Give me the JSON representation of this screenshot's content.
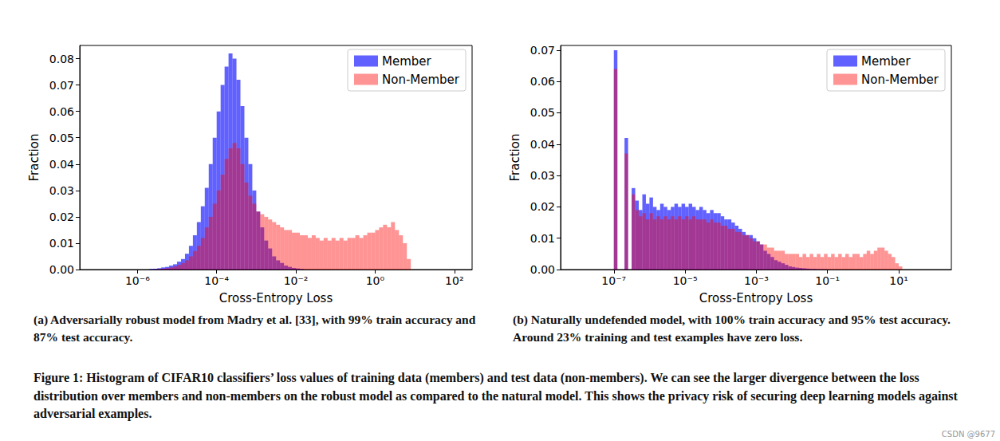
{
  "chart_data": [
    {
      "type": "histogram",
      "caption": "(a) Adversarially robust model from Madry et al. [33], with 99% train accuracy and 87% test accuracy.",
      "x_label": "Cross-Entropy Loss",
      "y_label": "Fraction",
      "log": "x",
      "grid": false,
      "legend": "upper right",
      "xlim": [
        3.5e-08,
        280
      ],
      "xticks": [
        {
          "value": 1e-06,
          "label": "10⁻⁶"
        },
        {
          "value": 0.0001,
          "label": "10⁻⁴"
        },
        {
          "value": 0.01,
          "label": "10⁻²"
        },
        {
          "value": 1,
          "label": "10⁰"
        },
        {
          "value": 100,
          "label": "10²"
        }
      ],
      "ylim": [
        0,
        0.085
      ],
      "yticks": [
        {
          "value": 0,
          "label": "0.00"
        },
        0.01,
        0.02,
        0.03,
        0.04,
        0.05,
        0.06,
        0.07,
        0.08
      ],
      "bins": [
        3.162e-07,
        3.981e-07,
        5.012e-07,
        6.31e-07,
        7.943e-07,
        1e-06,
        1.259e-06,
        1.585e-06,
        1.995e-06,
        2.512e-06,
        3.162e-06,
        3.981e-06,
        5.012e-06,
        6.31e-06,
        7.943e-06,
        1e-05,
        1.259e-05,
        1.585e-05,
        1.995e-05,
        2.512e-05,
        3.162e-05,
        3.981e-05,
        5.012e-05,
        6.31e-05,
        7.943e-05,
        0.0001,
        0.0001259,
        0.0001585,
        0.0001995,
        0.0002512,
        0.0003162,
        0.0003981,
        0.0005012,
        0.000631,
        0.0007943,
        0.001,
        0.001259,
        0.001585,
        0.001995,
        0.002512,
        0.003162,
        0.003981,
        0.005012,
        0.00631,
        0.007943,
        0.01,
        0.01259,
        0.01585,
        0.01995,
        0.02512,
        0.03162,
        0.03981,
        0.05012,
        0.0631,
        0.07943,
        0.1,
        0.1259,
        0.1585,
        0.1995,
        0.2512,
        0.3162,
        0.3981,
        0.5012,
        0.631,
        0.7943,
        1,
        1.259,
        1.585,
        1.995,
        2.512,
        3.162,
        3.981,
        5.012,
        6.31,
        7.943,
        10
      ],
      "series": [
        {
          "name": "Member",
          "color": "#0000ff",
          "values": [
            0,
            0,
            0,
            0,
            0,
            0,
            0,
            0,
            0.0002,
            0.0003,
            0.0005,
            0.0008,
            0.001,
            0.0015,
            0.002,
            0.003,
            0.004,
            0.006,
            0.009,
            0.013,
            0.018,
            0.024,
            0.031,
            0.04,
            0.05,
            0.06,
            0.07,
            0.077,
            0.082,
            0.08,
            0.072,
            0.062,
            0.05,
            0.04,
            0.03,
            0.022,
            0.016,
            0.011,
            0.008,
            0.005,
            0.0035,
            0.0025,
            0.0015,
            0.001,
            0.0006,
            0.0004,
            0.0002,
            0,
            0,
            0,
            0,
            0,
            0,
            0,
            0,
            0,
            0,
            0,
            0,
            0,
            0,
            0,
            0,
            0,
            0,
            0,
            0,
            0,
            0,
            0,
            0,
            0,
            0,
            0,
            0
          ]
        },
        {
          "name": "Non-Member",
          "color": "#ff0000",
          "values": [
            0,
            0,
            0,
            0,
            0,
            0,
            0,
            0,
            0,
            0.0001,
            0.0002,
            0.0003,
            0.0005,
            0.0008,
            0.0012,
            0.0018,
            0.0025,
            0.0035,
            0.005,
            0.007,
            0.009,
            0.012,
            0.016,
            0.02,
            0.025,
            0.03,
            0.036,
            0.042,
            0.046,
            0.048,
            0.046,
            0.04,
            0.033,
            0.028,
            0.025,
            0.022,
            0.021,
            0.02,
            0.019,
            0.018,
            0.017,
            0.016,
            0.015,
            0.015,
            0.014,
            0.014,
            0.013,
            0.013,
            0.012,
            0.013,
            0.012,
            0.011,
            0.012,
            0.011,
            0.012,
            0.011,
            0.012,
            0.011,
            0.012,
            0.012,
            0.013,
            0.012,
            0.013,
            0.014,
            0.014,
            0.015,
            0.016,
            0.017,
            0.016,
            0.018,
            0.015,
            0.013,
            0.01,
            0.004,
            0
          ]
        }
      ]
    },
    {
      "type": "histogram",
      "caption": "(b) Naturally undefended model, with 100% train accuracy and 95% test accuracy. Around 23% training and test examples have zero loss.",
      "x_label": "Cross-Entropy Loss",
      "y_label": "Fraction",
      "log": "x",
      "grid": false,
      "legend": "upper right",
      "xlim": [
        3.2e-09,
        300
      ],
      "xticks": [
        {
          "value": 1e-07,
          "label": "10⁻⁷"
        },
        {
          "value": 1e-05,
          "label": "10⁻⁵"
        },
        {
          "value": 0.001,
          "label": "10⁻³"
        },
        {
          "value": 0.1,
          "label": "10⁻¹"
        },
        {
          "value": 10,
          "label": "10¹"
        }
      ],
      "ylim": [
        0,
        0.0715
      ],
      "yticks": [
        {
          "value": 0,
          "label": "0.00"
        },
        0.01,
        0.02,
        0.03,
        0.04,
        0.05,
        0.06,
        0.07
      ],
      "bins": [
        1e-07,
        1.259e-07,
        1.585e-07,
        1.995e-07,
        2.512e-07,
        3.162e-07,
        3.981e-07,
        5.012e-07,
        6.31e-07,
        7.943e-07,
        1e-06,
        1.259e-06,
        1.585e-06,
        1.995e-06,
        2.512e-06,
        3.162e-06,
        3.981e-06,
        5.012e-06,
        6.31e-06,
        7.943e-06,
        1e-05,
        1.259e-05,
        1.585e-05,
        1.995e-05,
        2.512e-05,
        3.162e-05,
        3.981e-05,
        5.012e-05,
        6.31e-05,
        7.943e-05,
        0.0001,
        0.0001259,
        0.0001585,
        0.0001995,
        0.0002512,
        0.0003162,
        0.0003981,
        0.0005012,
        0.000631,
        0.0007943,
        0.001,
        0.001259,
        0.001585,
        0.001995,
        0.002512,
        0.003162,
        0.003981,
        0.005012,
        0.00631,
        0.007943,
        0.01,
        0.01259,
        0.01585,
        0.01995,
        0.02512,
        0.03162,
        0.03981,
        0.05012,
        0.0631,
        0.07943,
        0.1,
        0.1259,
        0.1585,
        0.1995,
        0.2512,
        0.3162,
        0.3981,
        0.5012,
        0.631,
        0.7943,
        1,
        1.259,
        1.585,
        1.995,
        2.512,
        3.162,
        3.981,
        5.012,
        6.31,
        7.943,
        10,
        12.59
      ],
      "series": [
        {
          "name": "Member",
          "color": "#0000ff",
          "values": [
            0.07,
            0,
            0,
            0.042,
            0,
            0.026,
            0.022,
            0.019,
            0.024,
            0.021,
            0.023,
            0.02,
            0.019,
            0.021,
            0.02,
            0.019,
            0.02,
            0.021,
            0.02,
            0.021,
            0.02,
            0.021,
            0.02,
            0.019,
            0.02,
            0.019,
            0.018,
            0.019,
            0.018,
            0.018,
            0.017,
            0.016,
            0.016,
            0.015,
            0.014,
            0.013,
            0.012,
            0.011,
            0.011,
            0.01,
            0.009,
            0.008,
            0.006,
            0.005,
            0.004,
            0.003,
            0.0025,
            0.002,
            0.0015,
            0.001,
            0.0008,
            0.0006,
            0.0005,
            0.0004,
            0.0003,
            0.0002,
            0.0002,
            0.0001,
            0.0001,
            0.0001,
            0,
            0,
            0,
            0,
            0,
            0,
            0,
            0,
            0,
            0,
            0,
            0,
            0,
            0,
            0,
            0,
            0,
            0,
            0,
            0,
            0
          ]
        },
        {
          "name": "Non-Member",
          "color": "#ff0000",
          "values": [
            0.064,
            0,
            0,
            0.037,
            0,
            0.024,
            0.019,
            0.017,
            0.018,
            0.016,
            0.018,
            0.016,
            0.017,
            0.016,
            0.017,
            0.016,
            0.017,
            0.016,
            0.017,
            0.016,
            0.017,
            0.016,
            0.017,
            0.016,
            0.016,
            0.016,
            0.015,
            0.016,
            0.015,
            0.015,
            0.014,
            0.014,
            0.013,
            0.013,
            0.012,
            0.012,
            0.011,
            0.011,
            0.01,
            0.009,
            0.009,
            0.008,
            0.008,
            0.007,
            0.007,
            0.006,
            0.006,
            0.006,
            0.005,
            0.005,
            0.005,
            0.005,
            0.004,
            0.005,
            0.004,
            0.005,
            0.004,
            0.005,
            0.004,
            0.005,
            0.004,
            0.005,
            0.004,
            0.005,
            0.004,
            0.005,
            0.004,
            0.005,
            0.005,
            0.004,
            0.005,
            0.006,
            0.005,
            0.006,
            0.007,
            0.007,
            0.006,
            0.005,
            0.004,
            0.002,
            0.001
          ]
        }
      ]
    }
  ],
  "caption": "Figure 1: Histogram of CIFAR10 classifiers’ loss values of training data (members) and test data (non-members). We can see the larger divergence between the loss distribution over members and non-members on the robust model as compared to the natural model. This shows the privacy risk of securing deep learning models against adversarial examples.",
  "watermark": "CSDN @9677"
}
